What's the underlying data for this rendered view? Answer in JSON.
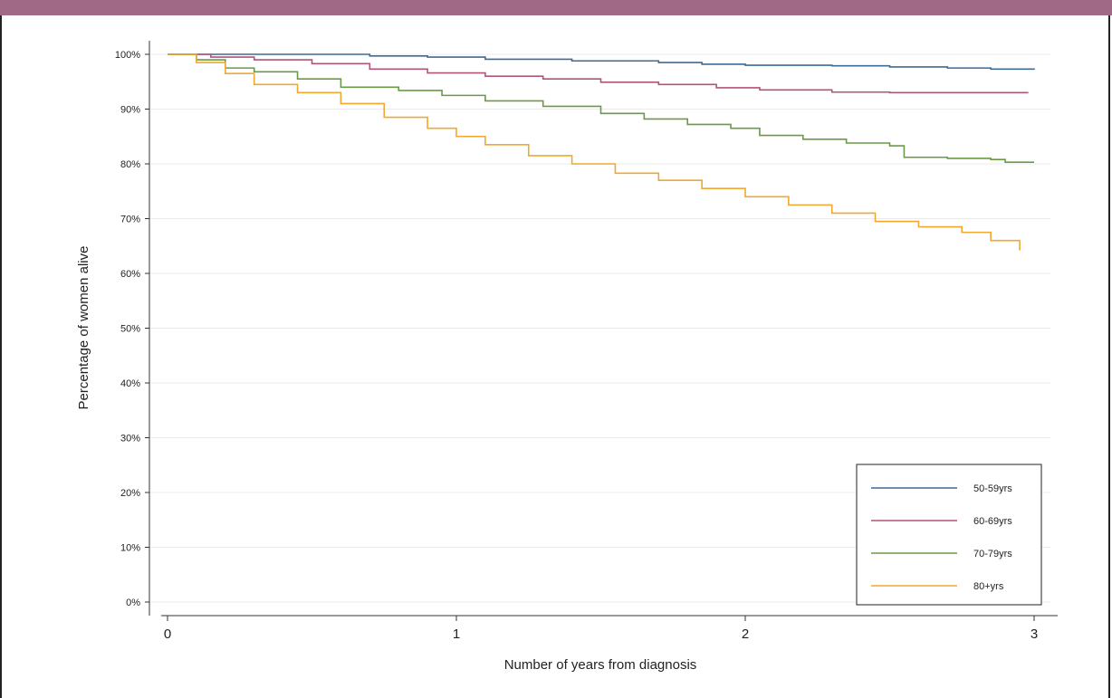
{
  "chart_data": {
    "type": "line",
    "title": "",
    "xlabel": "Number of years from diagnosis",
    "ylabel": "Percentage of women alive",
    "xlim": [
      0,
      3
    ],
    "ylim": [
      0,
      100
    ],
    "x_ticks": [
      {
        "value": 0,
        "label": "0"
      },
      {
        "value": 1,
        "label": "1"
      },
      {
        "value": 2,
        "label": "2"
      },
      {
        "value": 3,
        "label": "3"
      }
    ],
    "y_ticks": [
      {
        "value": 0,
        "label": "0%"
      },
      {
        "value": 10,
        "label": "10%"
      },
      {
        "value": 20,
        "label": "20%"
      },
      {
        "value": 30,
        "label": "30%"
      },
      {
        "value": 40,
        "label": "40%"
      },
      {
        "value": 50,
        "label": "50%"
      },
      {
        "value": 60,
        "label": "60%"
      },
      {
        "value": 70,
        "label": "70%"
      },
      {
        "value": 80,
        "label": "80%"
      },
      {
        "value": 90,
        "label": "90%"
      },
      {
        "value": 100,
        "label": "100%"
      }
    ],
    "grid": true,
    "legend_position": "bottom-right",
    "series": [
      {
        "name": "50-59yrs",
        "color": "#3e6a94",
        "x": [
          0,
          0.4,
          0.7,
          0.9,
          1.1,
          1.4,
          1.7,
          1.85,
          2.0,
          2.3,
          2.5,
          2.7,
          2.85,
          3.0
        ],
        "y": [
          100,
          100,
          99.7,
          99.5,
          99.1,
          98.8,
          98.5,
          98.2,
          98.0,
          97.9,
          97.7,
          97.5,
          97.3,
          97.2
        ]
      },
      {
        "name": "60-69yrs",
        "color": "#b0547a",
        "x": [
          0,
          0.15,
          0.3,
          0.5,
          0.7,
          0.9,
          1.1,
          1.3,
          1.5,
          1.7,
          1.9,
          2.05,
          2.3,
          2.5,
          2.7,
          2.85,
          2.98
        ],
        "y": [
          100,
          99.5,
          99.0,
          98.3,
          97.3,
          96.6,
          96.0,
          95.5,
          94.9,
          94.5,
          93.9,
          93.5,
          93.1,
          93.0,
          93.0,
          93.0,
          93.0
        ]
      },
      {
        "name": "70-79yrs",
        "color": "#6a9a46",
        "x": [
          0,
          0.1,
          0.2,
          0.3,
          0.45,
          0.6,
          0.8,
          0.95,
          1.1,
          1.3,
          1.5,
          1.65,
          1.8,
          1.95,
          2.05,
          2.2,
          2.35,
          2.5,
          2.55,
          2.7,
          2.85,
          2.9,
          3.0
        ],
        "y": [
          100,
          99,
          97.5,
          96.8,
          95.5,
          94.0,
          93.4,
          92.5,
          91.5,
          90.5,
          89.2,
          88.2,
          87.2,
          86.5,
          85.2,
          84.5,
          83.8,
          83.3,
          81.2,
          81.0,
          80.8,
          80.3,
          80.3
        ]
      },
      {
        "name": "80+yrs",
        "color": "#f0a830",
        "x": [
          0,
          0.1,
          0.2,
          0.3,
          0.45,
          0.6,
          0.75,
          0.9,
          1.0,
          1.1,
          1.25,
          1.4,
          1.55,
          1.7,
          1.85,
          2.0,
          2.15,
          2.3,
          2.45,
          2.6,
          2.75,
          2.85,
          2.95
        ],
        "y": [
          100,
          98.5,
          96.5,
          94.5,
          93.0,
          91.0,
          88.5,
          86.5,
          85.0,
          83.5,
          81.5,
          80.0,
          78.3,
          77.0,
          75.5,
          74.0,
          72.5,
          71.0,
          69.5,
          68.5,
          67.5,
          66.0,
          64.2
        ]
      }
    ]
  }
}
